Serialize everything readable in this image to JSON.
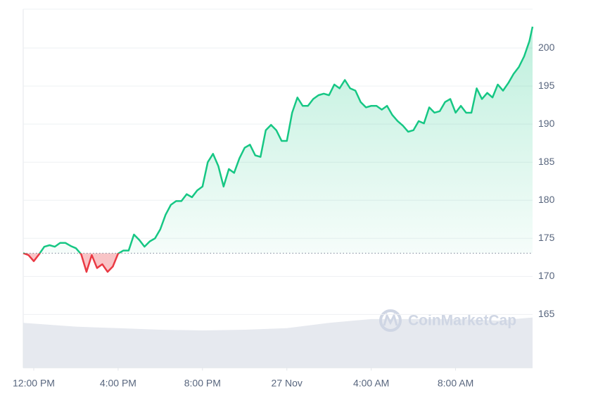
{
  "chart_data": {
    "type": "line",
    "x": [
      -0.5,
      -0.25,
      0,
      0.25,
      0.5,
      0.75,
      1,
      1.25,
      1.5,
      1.75,
      2,
      2.25,
      2.5,
      2.75,
      3,
      3.25,
      3.5,
      3.75,
      4,
      4.25,
      4.5,
      4.75,
      5,
      5.25,
      5.5,
      5.75,
      6,
      6.25,
      6.5,
      6.75,
      7,
      7.25,
      7.5,
      7.75,
      8,
      8.25,
      8.5,
      8.75,
      9,
      9.25,
      9.5,
      9.75,
      10,
      10.25,
      10.5,
      10.75,
      11,
      11.25,
      11.5,
      11.75,
      12,
      12.25,
      12.5,
      12.75,
      13,
      13.25,
      13.5,
      13.75,
      14,
      14.25,
      14.5,
      14.75,
      15,
      15.25,
      15.5,
      15.75,
      16,
      16.25,
      16.5,
      16.75,
      17,
      17.25,
      17.5,
      17.75,
      18,
      18.25,
      18.5,
      18.75,
      19,
      19.25,
      19.5,
      19.75,
      20,
      20.25,
      20.5,
      20.75,
      21,
      21.25,
      21.5,
      21.75,
      22,
      22.25,
      22.5,
      22.75,
      23,
      23.25,
      23.5,
      23.65
    ],
    "values": [
      173.05,
      172.8,
      172.0,
      172.9,
      173.9,
      174.1,
      173.9,
      174.4,
      174.4,
      174.0,
      173.7,
      172.9,
      170.6,
      172.8,
      171.1,
      171.6,
      170.6,
      171.3,
      173.0,
      173.4,
      173.4,
      175.5,
      174.8,
      173.9,
      174.6,
      175.0,
      176.2,
      178.1,
      179.4,
      179.9,
      179.9,
      180.8,
      180.4,
      181.3,
      181.8,
      185.0,
      186.1,
      184.5,
      181.8,
      184.1,
      183.6,
      185.5,
      186.9,
      187.3,
      185.9,
      185.7,
      189.2,
      189.9,
      189.2,
      187.8,
      187.8,
      191.5,
      193.5,
      192.4,
      192.4,
      193.3,
      193.8,
      194.0,
      193.8,
      195.2,
      194.7,
      195.8,
      194.7,
      194.4,
      192.9,
      192.2,
      192.4,
      192.4,
      191.9,
      192.4,
      191.2,
      190.4,
      189.8,
      189.0,
      189.2,
      190.4,
      190.1,
      192.2,
      191.5,
      191.7,
      192.9,
      193.3,
      191.5,
      192.4,
      191.5,
      191.5,
      194.7,
      193.3,
      194.1,
      193.5,
      195.2,
      194.4,
      195.4,
      196.6,
      197.5,
      198.9,
      200.9,
      202.8
    ],
    "baseline": 173.05,
    "color_up": "#16c784",
    "color_down": "#ea3943",
    "volume": {
      "x": [
        -0.5,
        2,
        4,
        6,
        8,
        10,
        12,
        14,
        16,
        18,
        20,
        22,
        23.2,
        23.65
      ],
      "values": [
        163.9,
        163.4,
        163.2,
        163.0,
        162.9,
        163.0,
        163.2,
        163.9,
        164.4,
        164.4,
        164.4,
        164.2,
        164.5,
        164.6
      ],
      "color": "#e6e9ef"
    },
    "xlim": [
      -0.5,
      23.65
    ],
    "ylim": [
      158,
      205.1
    ],
    "xticks": [
      {
        "value": 0,
        "label": "12:00 PM"
      },
      {
        "value": 4,
        "label": "4:00 PM"
      },
      {
        "value": 8,
        "label": "8:00 PM"
      },
      {
        "value": 12,
        "label": "27 Nov"
      },
      {
        "value": 16,
        "label": "4:00 AM"
      },
      {
        "value": 20,
        "label": "8:00 AM"
      }
    ],
    "yticks": [
      165,
      170,
      175,
      180,
      185,
      190,
      195,
      200
    ],
    "grid": true,
    "watermark": "CoinMarketCap"
  }
}
